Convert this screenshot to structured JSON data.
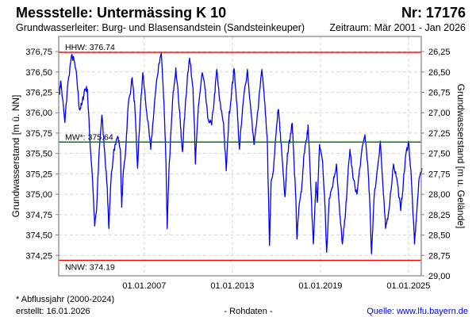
{
  "header": {
    "title": "Messstelle: Untermässing K 10",
    "number": "Nr: 17176",
    "aquifer": "Grundwasserleiter:  Burg- und Blasensandstein (Sandsteinkeuper)",
    "period": "Zeitraum: Mär 2001 - Jan 2026"
  },
  "footer": {
    "note": "* Abflussjahr (2000-2024)",
    "created": "erstellt:  16.01.2026",
    "rawdata": "- Rohdaten -",
    "source": "Quelle: www.lfu.bayern.de"
  },
  "colors": {
    "series": "#0000ff",
    "extreme": "#ff0000",
    "mean": "#008000",
    "link": "#0000ff"
  },
  "chart_data": {
    "type": "line",
    "ylabel": "Grundwasserstand [m ü. NN]",
    "ylabel_right": "Grundwasserstand [m u. Gelände]",
    "xlim": [
      2001.17,
      2025.87
    ],
    "ylim": [
      374.0,
      376.935
    ],
    "ground_level": 403.0,
    "x_ticks": [
      {
        "value": 2007.0,
        "label": "01.01.2007"
      },
      {
        "value": 2013.0,
        "label": "01.01.2013"
      },
      {
        "value": 2019.0,
        "label": "01.01.2019"
      },
      {
        "value": 2025.0,
        "label": "01.01.2025"
      }
    ],
    "y_ticks": [
      "374,25",
      "374,50",
      "374,75",
      "375,00",
      "375,25",
      "375,50",
      "375,75",
      "376,00",
      "376,25",
      "376,50",
      "376,75"
    ],
    "y_tick_values": [
      374.25,
      374.5,
      374.75,
      375.0,
      375.25,
      375.5,
      375.75,
      376.0,
      376.25,
      376.5,
      376.75
    ],
    "y_ticks_right": [
      "26,25",
      "26,50",
      "26,75",
      "27,00",
      "27,25",
      "27,50",
      "27,75",
      "28,00",
      "28,25",
      "28,50",
      "28,75",
      "29,00"
    ],
    "y_ticks_right_values": [
      26.25,
      26.5,
      26.75,
      27.0,
      27.25,
      27.5,
      27.75,
      28.0,
      28.25,
      28.5,
      28.75,
      29.0
    ],
    "reference_lines": [
      {
        "label": "HHW: 376.74",
        "value": 376.74,
        "kind": "extreme"
      },
      {
        "label": "MW*: 375.64",
        "value": 375.64,
        "kind": "mean"
      },
      {
        "label": "NNW: 374.19",
        "value": 374.19,
        "kind": "extreme"
      }
    ],
    "series": [
      {
        "name": "Grundwasserstand",
        "x": [
          2001.22,
          2001.31,
          2001.59,
          2001.76,
          2002.03,
          2002.21,
          2002.4,
          2002.58,
          2002.75,
          2002.94,
          2003.12,
          2003.29,
          2003.48,
          2003.62,
          2003.75,
          2003.93,
          2004.11,
          2004.29,
          2004.47,
          2004.59,
          2004.74,
          2004.92,
          2005.19,
          2005.37,
          2005.46,
          2005.55,
          2005.73,
          2005.91,
          2006.18,
          2006.36,
          2006.54,
          2006.72,
          2006.9,
          2007.17,
          2007.44,
          2007.71,
          2007.98,
          2008.16,
          2008.34,
          2008.48,
          2008.56,
          2008.7,
          2008.97,
          2009.15,
          2009.42,
          2009.51,
          2009.6,
          2009.78,
          2009.96,
          2010.09,
          2010.32,
          2010.41,
          2010.48,
          2010.68,
          2010.95,
          2011.13,
          2011.32,
          2011.59,
          2011.76,
          2011.94,
          2012.13,
          2012.4,
          2012.58,
          2012.76,
          2012.94,
          2013.12,
          2013.3,
          2013.48,
          2013.75,
          2014.02,
          2014.2,
          2014.47,
          2014.65,
          2015.01,
          2015.19,
          2015.37,
          2015.46,
          2015.53,
          2015.64,
          2015.82,
          2016.0,
          2016.13,
          2016.27,
          2016.45,
          2016.59,
          2016.75,
          2016.94,
          2017.08,
          2017.21,
          2017.32,
          2017.4,
          2017.53,
          2017.71,
          2017.89,
          2018.08,
          2018.16,
          2018.34,
          2018.52,
          2018.7,
          2018.79,
          2018.94,
          2019.15,
          2019.3,
          2019.42,
          2019.6,
          2019.87,
          2020.09,
          2020.32,
          2020.5,
          2020.68,
          2020.86,
          2021.01,
          2021.22,
          2021.49,
          2021.76,
          2022.03,
          2022.21,
          2022.36,
          2022.48,
          2022.66,
          2022.94,
          2023.08,
          2023.29,
          2023.44,
          2023.66,
          2023.98,
          2024.2,
          2024.47,
          2024.65,
          2024.83,
          2025.01,
          2025.19,
          2025.41,
          2025.55,
          2025.73,
          2025.92
        ],
        "y": [
          376.24,
          376.39,
          375.88,
          376.29,
          376.69,
          376.65,
          376.43,
          376.04,
          376.1,
          376.29,
          376.29,
          375.68,
          375.17,
          374.61,
          374.8,
          375.55,
          375.97,
          375.55,
          375.1,
          374.58,
          375.2,
          375.55,
          375.71,
          375.55,
          374.84,
          375.2,
          375.55,
          376.1,
          376.43,
          376.05,
          375.32,
          376.0,
          376.49,
          376.0,
          375.55,
          376.15,
          376.59,
          376.73,
          376.13,
          375.4,
          374.58,
          375.37,
          376.26,
          376.55,
          376.0,
          375.71,
          375.52,
          376.04,
          376.49,
          376.67,
          376.3,
          375.87,
          375.37,
          376.07,
          376.49,
          376.3,
          375.94,
          375.85,
          376.15,
          376.53,
          376.15,
          375.87,
          375.29,
          375.93,
          376.24,
          376.54,
          376.13,
          375.55,
          376.15,
          376.53,
          376.15,
          375.61,
          375.86,
          376.53,
          376.15,
          375.71,
          375.0,
          374.37,
          375.15,
          375.35,
          375.8,
          376.04,
          375.75,
          375.3,
          374.97,
          375.5,
          375.7,
          375.87,
          375.37,
          374.97,
          374.45,
          374.82,
          375.03,
          375.5,
          375.7,
          375.85,
          375.1,
          374.39,
          375.15,
          374.9,
          375.61,
          375.4,
          374.9,
          374.29,
          374.95,
          375.15,
          375.37,
          374.75,
          374.39,
          374.7,
          375.2,
          375.55,
          375.2,
          375.0,
          375.45,
          375.73,
          375.4,
          374.9,
          374.27,
          374.97,
          375.4,
          375.65,
          375.0,
          374.58,
          374.8,
          375.37,
          375.2,
          374.8,
          375.15,
          375.5,
          375.65,
          375.2,
          374.39,
          374.75,
          375.2,
          375.32
        ]
      }
    ]
  }
}
